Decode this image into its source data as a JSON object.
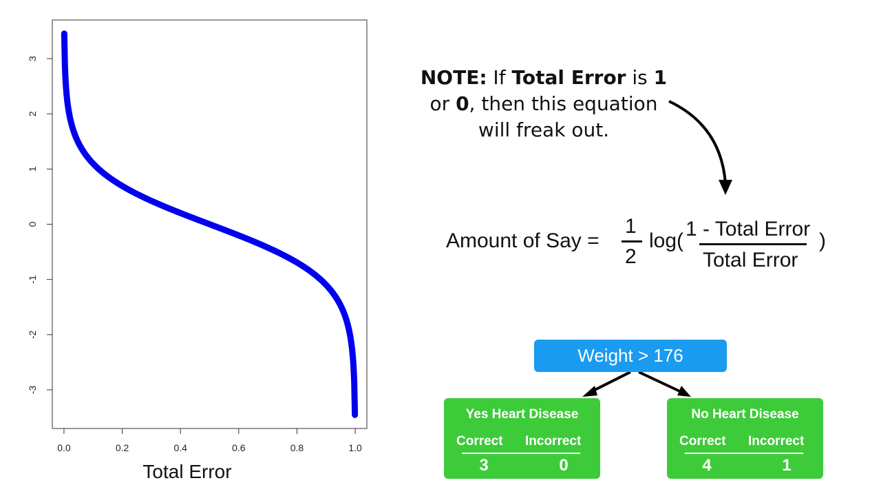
{
  "chart_data": {
    "type": "line",
    "function": "0.5 * ln((1 - x) / x)",
    "x_range": [
      0.0,
      1.0
    ],
    "sample_points": [
      {
        "x": 0.001,
        "y": 3.45
      },
      {
        "x": 0.01,
        "y": 2.3
      },
      {
        "x": 0.05,
        "y": 1.47
      },
      {
        "x": 0.1,
        "y": 1.1
      },
      {
        "x": 0.2,
        "y": 0.69
      },
      {
        "x": 0.3,
        "y": 0.42
      },
      {
        "x": 0.4,
        "y": 0.2
      },
      {
        "x": 0.5,
        "y": 0.0
      },
      {
        "x": 0.6,
        "y": -0.2
      },
      {
        "x": 0.7,
        "y": -0.42
      },
      {
        "x": 0.8,
        "y": -0.69
      },
      {
        "x": 0.9,
        "y": -1.1
      },
      {
        "x": 0.95,
        "y": -1.47
      },
      {
        "x": 0.99,
        "y": -2.3
      },
      {
        "x": 0.999,
        "y": -3.45
      }
    ],
    "xlabel": "Total Error",
    "ylabel": "",
    "xlim": [
      -0.04,
      1.04
    ],
    "ylim": [
      -3.7,
      3.7
    ],
    "x_ticks": [
      "0.0",
      "0.2",
      "0.4",
      "0.6",
      "0.8",
      "1.0"
    ],
    "y_ticks": [
      "-3",
      "-2",
      "-1",
      "0",
      "1",
      "2",
      "3"
    ],
    "line_color": "#0000ee",
    "grid": false
  },
  "note": {
    "label_note": "NOTE:",
    "text_if": " If ",
    "text_total_error": "Total Error",
    "text_is": " is ",
    "val_one": "1",
    "text_or": "or ",
    "val_zero": "0",
    "text_then": ", then this equation",
    "text_freak": "will freak out."
  },
  "equation": {
    "lhs": "Amount of Say =",
    "half_num": "1",
    "half_den": "2",
    "log_open": "log(",
    "numerator": "1 - Total Error",
    "denominator": "Total Error",
    "close": ")"
  },
  "tree": {
    "root_label": "Weight > 176",
    "left": {
      "title": "Yes Heart Disease",
      "correct_label": "Correct",
      "incorrect_label": "Incorrect",
      "correct": "3",
      "incorrect": "0"
    },
    "right": {
      "title": "No Heart Disease",
      "correct_label": "Correct",
      "incorrect_label": "Incorrect",
      "correct": "4",
      "incorrect": "1"
    },
    "colors": {
      "root": "#1a9bf0",
      "leaf": "#3ecb3a"
    }
  }
}
